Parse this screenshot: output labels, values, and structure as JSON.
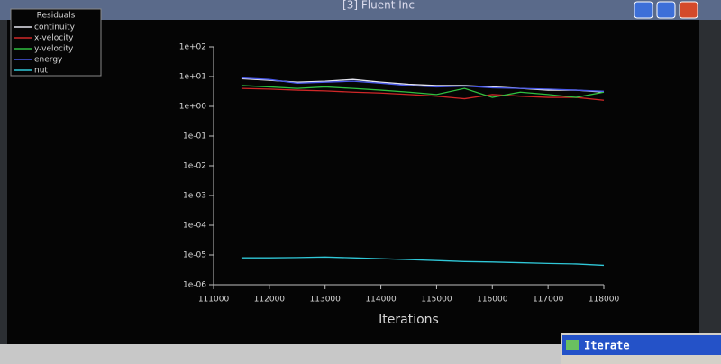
{
  "window": {
    "title": "[3] Fluent Inc",
    "dialog": "Iterate"
  },
  "chart_data": {
    "type": "line",
    "legend_title": "Residuals",
    "xlabel": "Iterations",
    "ylog": true,
    "legend": "top-left",
    "x": [
      111500,
      112000,
      112500,
      113000,
      113500,
      114000,
      114500,
      115000,
      115500,
      116000,
      116500,
      117000,
      117500,
      118000
    ],
    "series": [
      {
        "name": "continuity",
        "color": "#e6e6f0",
        "values": [
          8.5,
          7.5,
          6.5,
          7,
          8,
          6.5,
          5.5,
          5,
          5,
          4.5,
          4,
          3.5,
          3.5,
          3
        ]
      },
      {
        "name": "x-velocity",
        "color": "#d02828",
        "values": [
          4,
          3.8,
          3.5,
          3.3,
          3,
          2.8,
          2.5,
          2.2,
          1.8,
          2.5,
          2.2,
          2,
          2,
          1.6
        ]
      },
      {
        "name": "y-velocity",
        "color": "#30c040",
        "values": [
          5,
          4.5,
          4,
          4.5,
          4,
          3.5,
          3,
          2.5,
          4,
          2,
          3,
          2.5,
          2,
          3
        ]
      },
      {
        "name": "energy",
        "color": "#4858e8",
        "values": [
          9,
          8,
          6,
          6.5,
          7,
          6,
          5,
          4.5,
          4.8,
          4.2,
          4,
          3.8,
          3.5,
          3.2
        ]
      },
      {
        "name": "nut",
        "color": "#30c8d8",
        "values": [
          8e-06,
          8e-06,
          8.2e-06,
          8.5e-06,
          8e-06,
          7.5e-06,
          7e-06,
          6.5e-06,
          6e-06,
          5.8e-06,
          5.5e-06,
          5.2e-06,
          5e-06,
          4.5e-06
        ]
      }
    ],
    "xlim": [
      111000,
      118000
    ],
    "xticks": [
      111000,
      112000,
      113000,
      114000,
      115000,
      116000,
      117000,
      118000
    ],
    "ylim": [
      1e-06,
      100
    ],
    "yticks": [
      {
        "value": 1e-06,
        "label": "1e-06"
      },
      {
        "value": 1e-05,
        "label": "1e-05"
      },
      {
        "value": 0.0001,
        "label": "1e-04"
      },
      {
        "value": 0.001,
        "label": "1e-03"
      },
      {
        "value": 0.01,
        "label": "1e-02"
      },
      {
        "value": 0.1,
        "label": "1e-01"
      },
      {
        "value": 1,
        "label": "1e+00"
      },
      {
        "value": 10,
        "label": "1e+01"
      },
      {
        "value": 100,
        "label": "1e+02"
      }
    ]
  }
}
